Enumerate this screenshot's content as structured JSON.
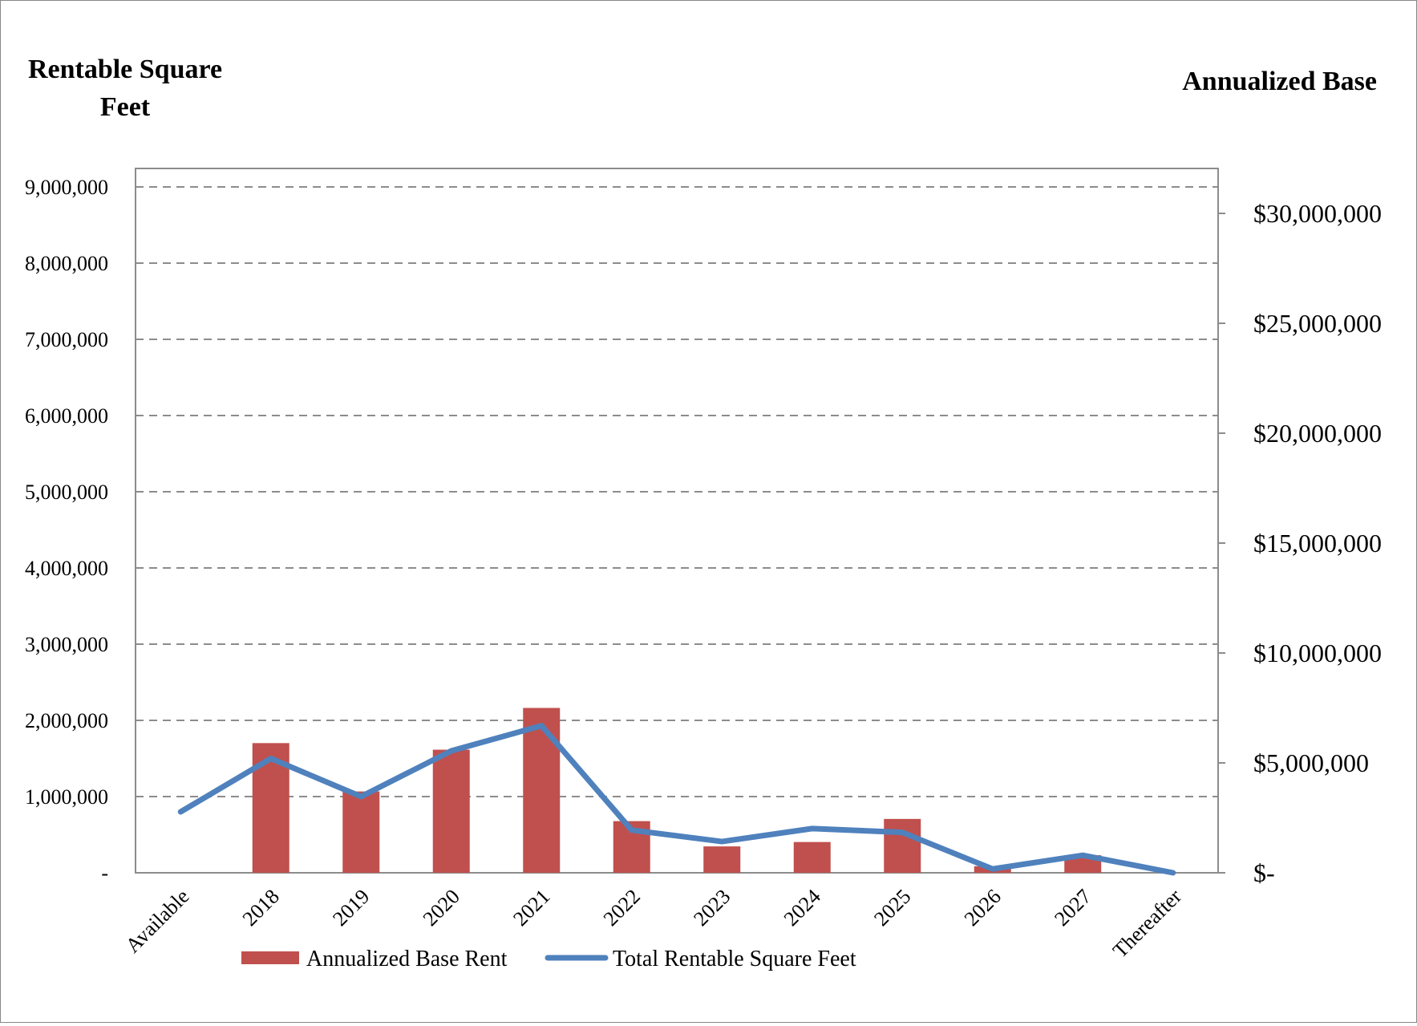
{
  "chart_data": {
    "type": "bar+line",
    "categories": [
      "Available",
      "2018",
      "2019",
      "2020",
      "2021",
      "2022",
      "2023",
      "2024",
      "2025",
      "2026",
      "2027",
      "Thereafter"
    ],
    "left_axis": {
      "title_line1": "Rentable Square",
      "title_line2": "Feet",
      "ylim": [
        0,
        9000000
      ],
      "ticks": [
        0,
        1000000,
        2000000,
        3000000,
        4000000,
        5000000,
        6000000,
        7000000,
        8000000,
        9000000
      ],
      "tick_labels": [
        "-",
        "1,000,000",
        "2,000,000",
        "3,000,000",
        "4,000,000",
        "5,000,000",
        "6,000,000",
        "7,000,000",
        "8,000,000",
        "9,000,000"
      ]
    },
    "right_axis": {
      "title": "Annualized Base",
      "ylim": [
        0,
        32140000
      ],
      "ticks": [
        0,
        5000000,
        10000000,
        15000000,
        20000000,
        25000000,
        30000000
      ],
      "tick_labels": [
        "$-",
        "$5,000,000",
        "$10,000,000",
        "$15,000,000",
        "$20,000,000",
        "$25,000,000",
        "$30,000,000"
      ]
    },
    "series": [
      {
        "name": "Annualized Base Rent",
        "type": "bar",
        "axis": "right",
        "color": "#c0504d",
        "values": [
          0,
          5900000,
          3700000,
          5600000,
          7500000,
          2350000,
          1200000,
          1400000,
          2450000,
          300000,
          800000,
          0
        ]
      },
      {
        "name": "Total Rentable Square Feet",
        "type": "line",
        "axis": "left",
        "color": "#4f81bd",
        "values": [
          800000,
          1500000,
          1000000,
          1600000,
          1930000,
          560000,
          410000,
          580000,
          530000,
          50000,
          230000,
          0
        ]
      }
    ],
    "grid": true,
    "grid_style": "dashed",
    "legend_position": "bottom"
  }
}
